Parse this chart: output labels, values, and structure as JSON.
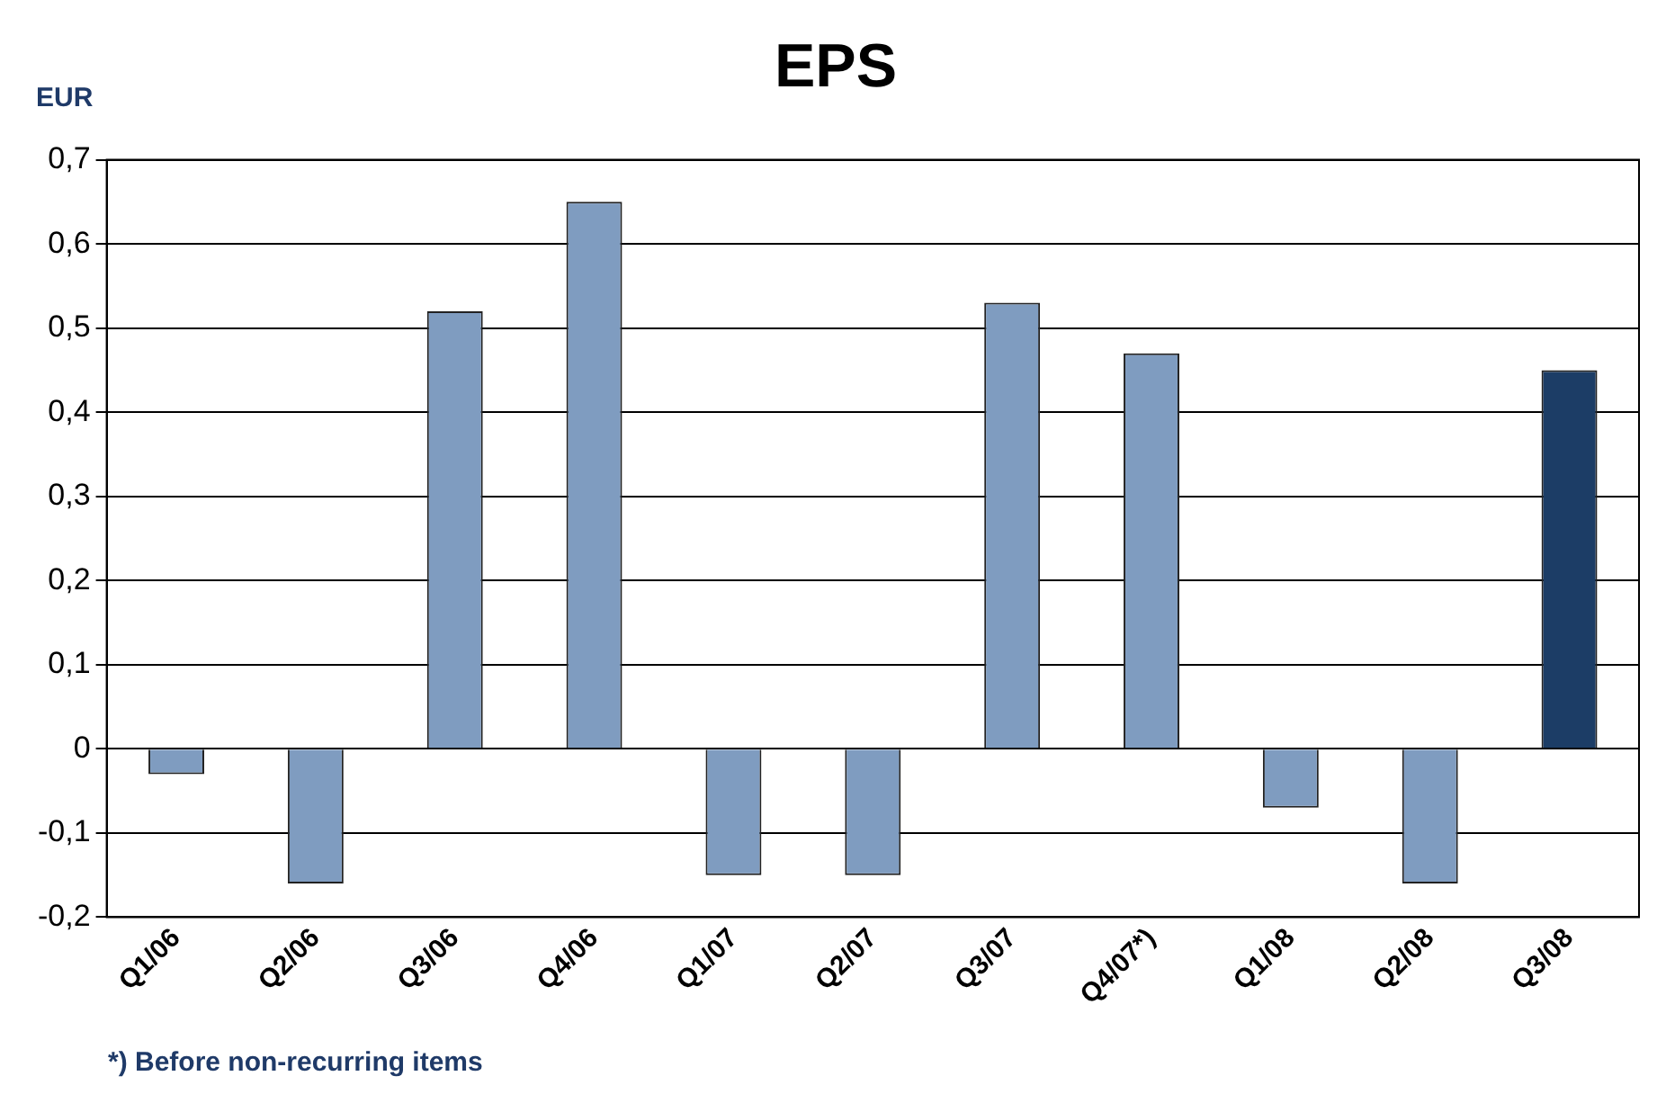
{
  "chart_data": {
    "type": "bar",
    "title": "EPS",
    "ylabel": "EUR",
    "categories": [
      "Q1/06",
      "Q2/06",
      "Q3/06",
      "Q4/06",
      "Q1/07",
      "Q2/07",
      "Q3/07",
      "Q4/07*)",
      "Q1/08",
      "Q2/08",
      "Q3/08"
    ],
    "values": [
      -0.03,
      -0.16,
      0.52,
      0.65,
      -0.15,
      -0.15,
      0.53,
      0.47,
      -0.07,
      -0.16,
      0.45
    ],
    "colors": [
      "#7f9cc0",
      "#7f9cc0",
      "#7f9cc0",
      "#7f9cc0",
      "#7f9cc0",
      "#7f9cc0",
      "#7f9cc0",
      "#7f9cc0",
      "#7f9cc0",
      "#7f9cc0",
      "#1c3d66"
    ],
    "ylim": [
      -0.2,
      0.7
    ],
    "yticks": [
      {
        "value": -0.2,
        "label": "-0,2"
      },
      {
        "value": -0.1,
        "label": "-0,1"
      },
      {
        "value": 0,
        "label": "0"
      },
      {
        "value": 0.1,
        "label": "0,1"
      },
      {
        "value": 0.2,
        "label": "0,2"
      },
      {
        "value": 0.3,
        "label": "0,3"
      },
      {
        "value": 0.4,
        "label": "0,4"
      },
      {
        "value": 0.5,
        "label": "0,5"
      },
      {
        "value": 0.6,
        "label": "0,6"
      },
      {
        "value": 0.7,
        "label": "0,7"
      }
    ],
    "grid": "y",
    "legend": false,
    "annotations": [
      "*) Before non-recurring items"
    ]
  }
}
